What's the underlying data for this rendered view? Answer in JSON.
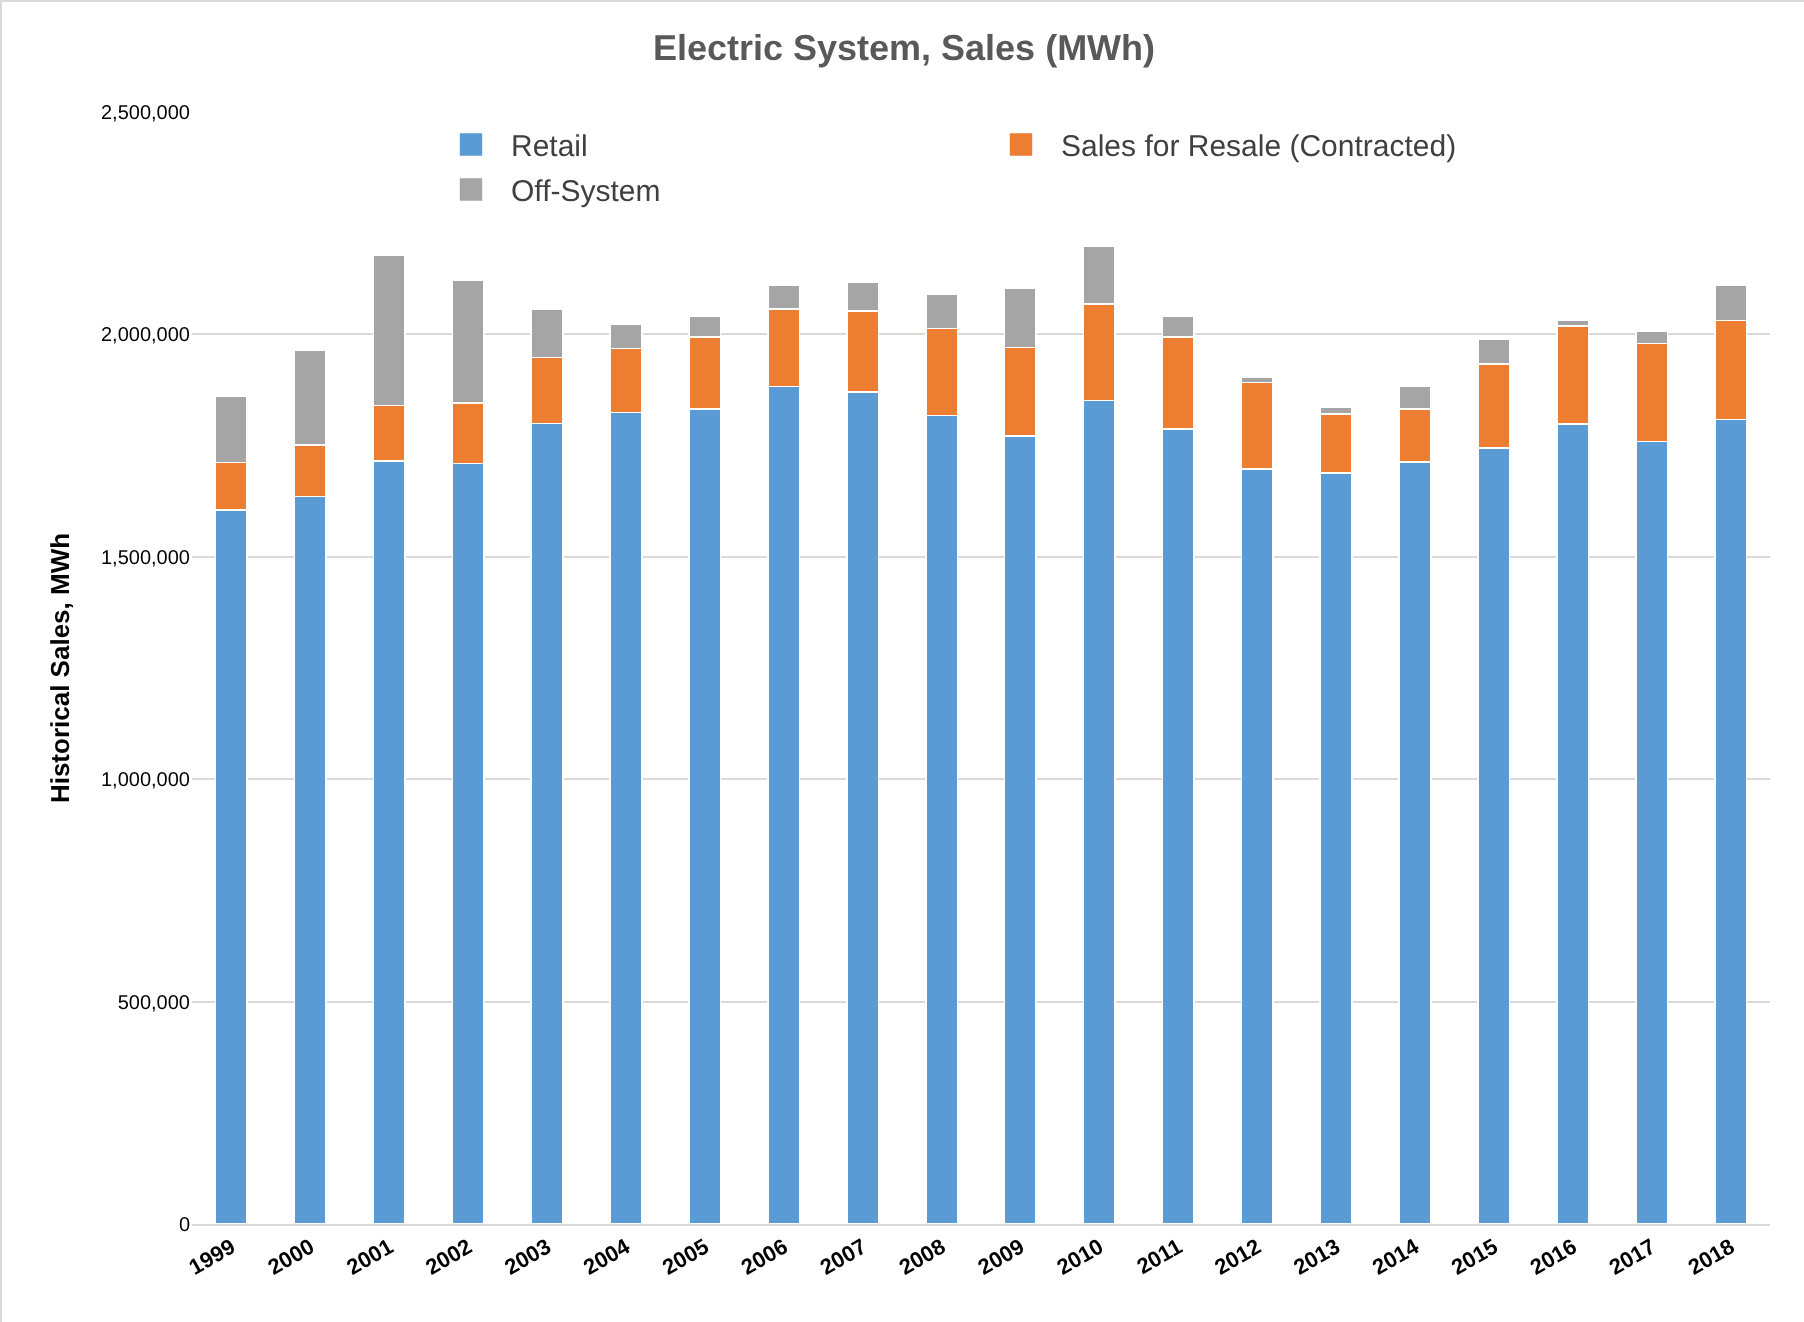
{
  "chart_data": {
    "type": "bar",
    "title": "Electric System, Sales (MWh)",
    "ylabel": "Historical Sales, MWh",
    "categories": [
      "1999",
      "2000",
      "2001",
      "2002",
      "2003",
      "2004",
      "2005",
      "2006",
      "2007",
      "2008",
      "2009",
      "2010",
      "2011",
      "2012",
      "2013",
      "2014",
      "2015",
      "2016",
      "2017",
      "2018"
    ],
    "stacked": true,
    "series": [
      {
        "name": "Retail",
        "color": "#5b9bd5",
        "values": [
          1605000,
          1636000,
          1716000,
          1710000,
          1800000,
          1824000,
          1832000,
          1883000,
          1871000,
          1818000,
          1772000,
          1851000,
          1787000,
          1698000,
          1689000,
          1713000,
          1744000,
          1798000,
          1759000,
          1809000
        ]
      },
      {
        "name": "Sales for Resale (Contracted)",
        "color": "#ed7d31",
        "values": [
          107000,
          116000,
          124000,
          136000,
          148000,
          144000,
          162000,
          174000,
          182000,
          195000,
          199000,
          217000,
          207000,
          194000,
          132000,
          119000,
          190000,
          221000,
          221000,
          222000
        ]
      },
      {
        "name": "Off-System",
        "color": "#a5a5a5",
        "values": [
          148000,
          212000,
          339000,
          276000,
          108000,
          54000,
          46000,
          53000,
          64000,
          78000,
          134000,
          130000,
          46000,
          11000,
          16000,
          52000,
          56000,
          14000,
          28000,
          79000
        ]
      }
    ],
    "ylim": [
      0,
      2500000
    ],
    "yticks": [
      {
        "value": 0,
        "label": "0"
      },
      {
        "value": 500000,
        "label": "500,000"
      },
      {
        "value": 1000000,
        "label": "1,000,000"
      },
      {
        "value": 1500000,
        "label": "1,500,000"
      },
      {
        "value": 2000000,
        "label": "2,000,000"
      },
      {
        "value": 2500000,
        "label": "2,500,000"
      }
    ],
    "grid": "y",
    "legend": "top"
  }
}
